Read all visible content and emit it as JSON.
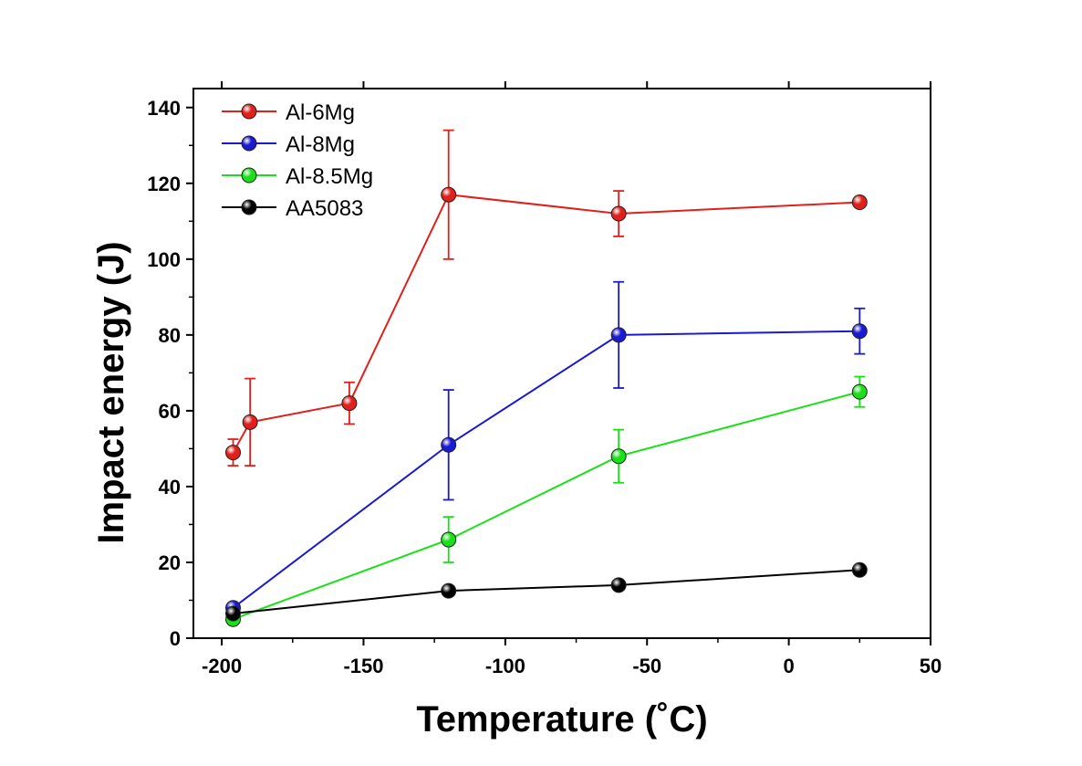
{
  "chart_data": {
    "type": "line",
    "xlabel": "Temperature (˚C)",
    "ylabel": "Impact energy (J)",
    "xlim": [
      -210,
      50
    ],
    "ylim": [
      0,
      145
    ],
    "xticks": [
      -200,
      -150,
      -100,
      -50,
      0,
      50
    ],
    "yticks": [
      0,
      20,
      40,
      60,
      80,
      100,
      120,
      140
    ],
    "xtick_labels": [
      "-200",
      "-150",
      "-100",
      "-50",
      "0",
      "50"
    ],
    "ytick_labels": [
      "0",
      "20",
      "40",
      "60",
      "80",
      "100",
      "120",
      "140"
    ],
    "legend_position": "top-left",
    "grid": false,
    "series": [
      {
        "name": "Al-6Mg",
        "color": "#e0201b",
        "x": [
          -196,
          -190,
          -155,
          -120,
          -60,
          25
        ],
        "y": [
          49,
          57,
          62,
          117,
          112,
          115
        ],
        "err": [
          3.5,
          11.5,
          5.5,
          17,
          6,
          0
        ]
      },
      {
        "name": "Al-8Mg",
        "color": "#1a1ad0",
        "x": [
          -196,
          -120,
          -60,
          25
        ],
        "y": [
          8,
          51,
          80,
          81
        ],
        "err": [
          0,
          14.5,
          14,
          6
        ]
      },
      {
        "name": "Al-8.5Mg",
        "color": "#19e019",
        "x": [
          -196,
          -120,
          -60,
          25
        ],
        "y": [
          5,
          26,
          48,
          65
        ],
        "err": [
          0,
          6,
          7,
          4
        ]
      },
      {
        "name": "AA5083",
        "color": "#000000",
        "x": [
          -196,
          -120,
          -60,
          25
        ],
        "y": [
          6.5,
          12.5,
          14,
          18
        ],
        "err": [
          0,
          0,
          0,
          0
        ]
      }
    ]
  }
}
